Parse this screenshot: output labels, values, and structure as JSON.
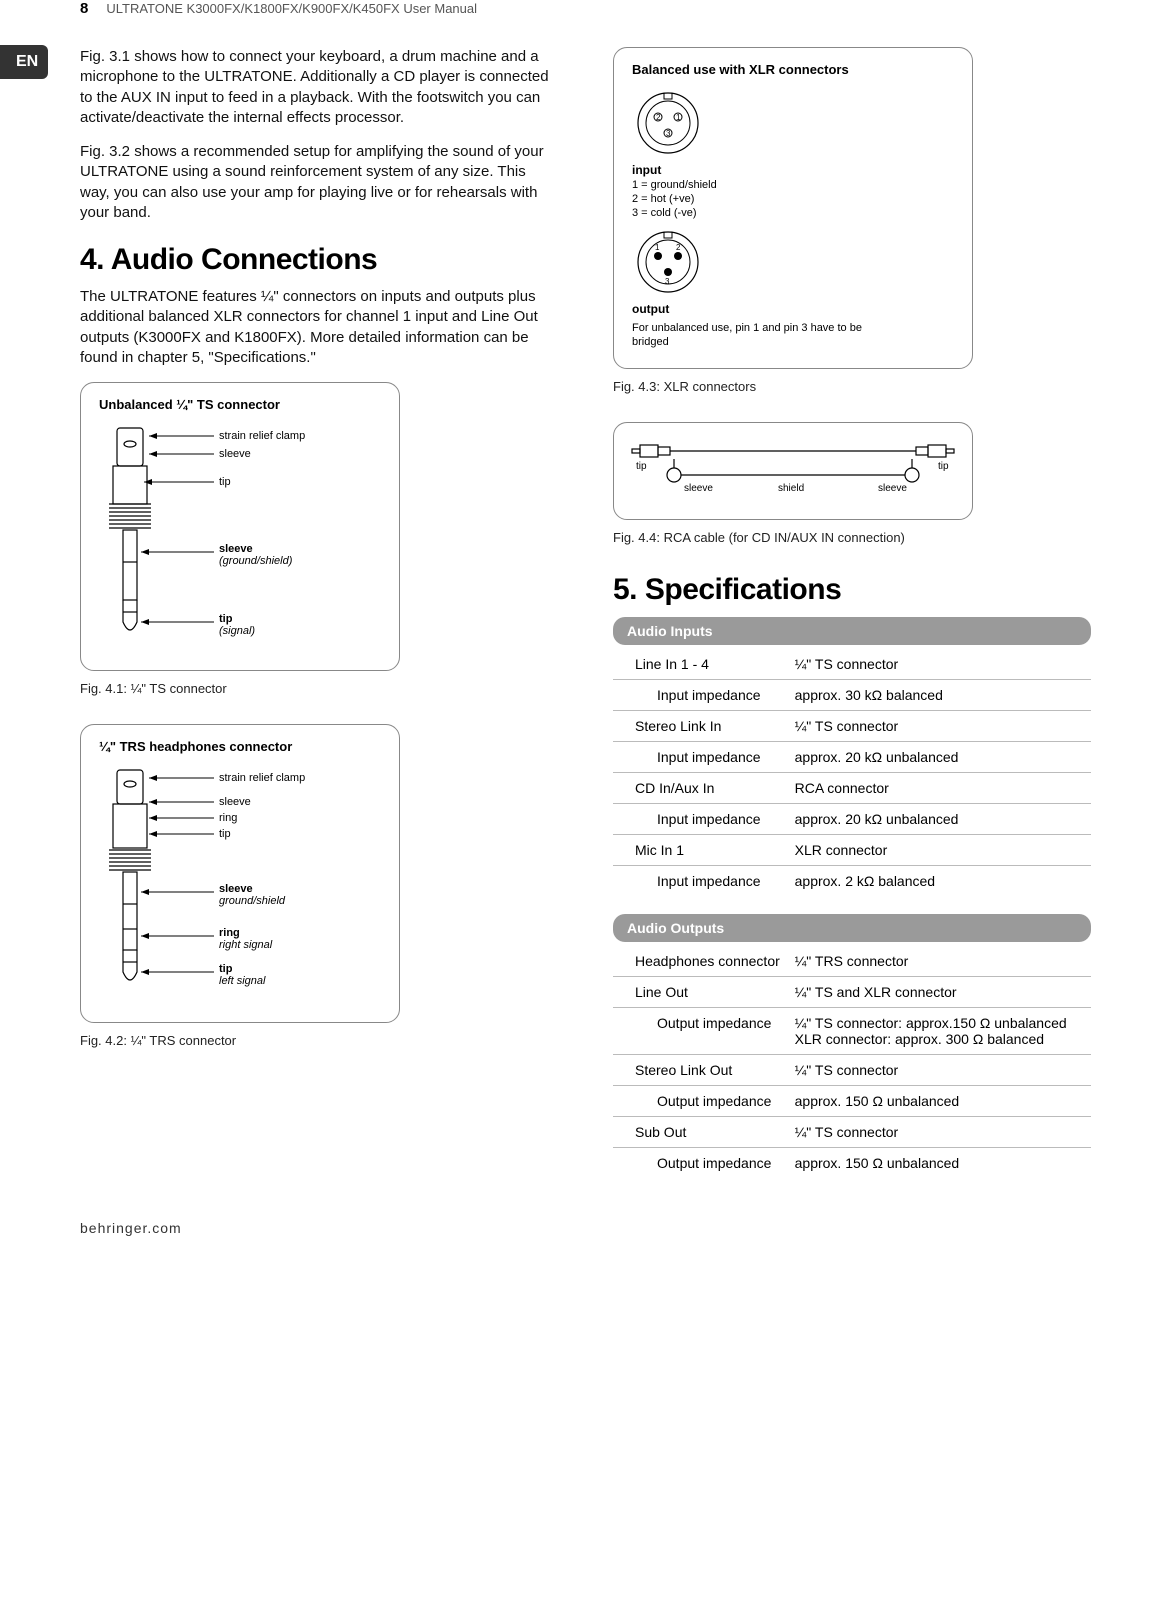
{
  "header": {
    "page_number": "8",
    "doc_title": "ULTRATONE K3000FX/K1800FX/K900FX/K450FX User Manual",
    "lang_tab": "EN"
  },
  "intro": {
    "para1": "Fig. 3.1 shows how to connect your keyboard, a drum machine and a microphone to the ULTRATONE. Additionally a CD player is connected to the AUX IN input to feed in a playback. With the footswitch you can activate/deactivate the internal effects processor.",
    "para2": "Fig. 3.2 shows a recommended setup for amplifying the sound of your ULTRATONE using a sound reinforcement system of any size. This way, you can also use your amp for playing live or for rehearsals with your band."
  },
  "section4": {
    "heading": "4.  Audio Connections",
    "para": "The ULTRATONE features ¼\" connectors on inputs and outputs plus additional balanced XLR connectors for channel 1 input and Line Out outputs (K3000FX and K1800FX). More detailed information can be found in chapter 5, \"Specifications.\""
  },
  "fig41": {
    "box_title": "Unbalanced ¼\" TS connector",
    "labels": {
      "strain": "strain relief clamp",
      "sleeve": "sleeve",
      "tip": "tip",
      "sleeve2": "sleeve",
      "sleeve2_sub": "(ground/shield)",
      "tip2": "tip",
      "tip2_sub": "(signal)"
    },
    "caption": "Fig. 4.1: ¼\" TS connector"
  },
  "fig42": {
    "box_title": "¼\" TRS headphones connector",
    "labels": {
      "strain": "strain relief clamp",
      "sleeve": "sleeve",
      "ring": "ring",
      "tip": "tip",
      "sleeve2": "sleeve",
      "sleeve2_sub": "ground/shield",
      "ring2": "ring",
      "ring2_sub": "right signal",
      "tip2": "tip",
      "tip2_sub": "left signal"
    },
    "caption": "Fig. 4.2: ¼\" TRS connector"
  },
  "fig43": {
    "box_title": "Balanced use with XLR connectors",
    "input_label": "input",
    "pin_legend": {
      "l1": "1 = ground/shield",
      "l2": "2 = hot (+ve)",
      "l3": "3 = cold (-ve)"
    },
    "output_label": "output",
    "note": "For unbalanced use, pin 1 and pin 3 have to be bridged",
    "caption": "Fig. 4.3: XLR connectors"
  },
  "fig44": {
    "labels": {
      "tip": "tip",
      "sleeve": "sleeve",
      "shield": "shield"
    },
    "caption": "Fig. 4.4: RCA cable (for CD IN/AUX IN connection)"
  },
  "section5": {
    "heading": "5.  Specifications"
  },
  "spec": {
    "inputs_header": "Audio Inputs",
    "inputs": [
      {
        "label": "Line In 1 - 4",
        "value": "¼\" TS connector",
        "sub": false
      },
      {
        "label": "Input impedance",
        "value": "approx. 30 kΩ balanced",
        "sub": true
      },
      {
        "label": "Stereo Link In",
        "value": "¼\" TS connector",
        "sub": false
      },
      {
        "label": "Input impedance",
        "value": "approx. 20 kΩ unbalanced",
        "sub": true
      },
      {
        "label": "CD In/Aux In",
        "value": "RCA connector",
        "sub": false
      },
      {
        "label": "Input impedance",
        "value": "approx. 20 kΩ unbalanced",
        "sub": true
      },
      {
        "label": "Mic In 1",
        "value": "XLR connector",
        "sub": false
      },
      {
        "label": "Input impedance",
        "value": "approx. 2 kΩ balanced",
        "sub": true
      }
    ],
    "outputs_header": "Audio Outputs",
    "outputs": [
      {
        "label": "Headphones connector",
        "value": "¼\" TRS connector",
        "sub": false
      },
      {
        "label": "Line Out",
        "value": "¼\" TS and XLR connector",
        "sub": false
      },
      {
        "label": "Output impedance",
        "value": "¼\" TS connector: approx.150 Ω unbalanced\nXLR connector: approx. 300 Ω balanced",
        "sub": true
      },
      {
        "label": "Stereo Link Out",
        "value": "¼\" TS connector",
        "sub": false
      },
      {
        "label": "Output impedance",
        "value": "approx. 150 Ω unbalanced",
        "sub": true
      },
      {
        "label": "Sub Out",
        "value": "¼\" TS connector",
        "sub": false
      },
      {
        "label": "Output impedance",
        "value": "approx. 150 Ω unbalanced",
        "sub": true
      }
    ]
  },
  "footer": {
    "brand": "behringer.com"
  },
  "colors": {
    "text": "#000000",
    "muted": "#555555",
    "border": "#888888",
    "spec_header_bg": "#9a9a9a",
    "rule": "#bbbbbb",
    "tab_bg": "#333333"
  }
}
